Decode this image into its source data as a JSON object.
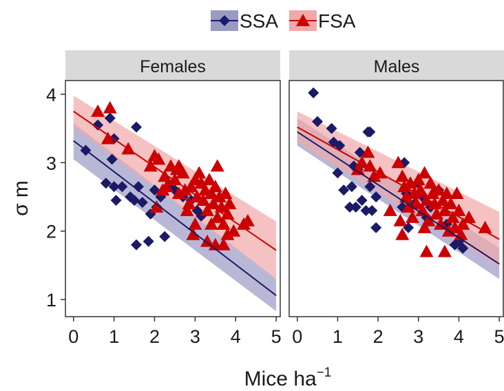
{
  "chart_data": {
    "type": "scatter",
    "xlabel": "Mice ha",
    "xlabel_sup": "−1",
    "ylabel": "σ m",
    "xlim": [
      -0.2,
      5.1
    ],
    "ylim": [
      0.75,
      4.2
    ],
    "xticks": [
      "0",
      "1",
      "2",
      "3",
      "4",
      "5"
    ],
    "yticks": [
      "1",
      "2",
      "3",
      "4"
    ],
    "legend": {
      "position": "top",
      "entries": [
        {
          "name": "SSA",
          "color": "#1a1a66",
          "marker": "diamond",
          "band": "#9a9ac4"
        },
        {
          "name": "FSA",
          "color": "#cc0000",
          "marker": "triangle",
          "band": "#f0a8a8"
        }
      ]
    },
    "panels": [
      {
        "title": "Females",
        "series": [
          {
            "name": "SSA",
            "fit": {
              "x": [
                0,
                5
              ],
              "y": [
                3.32,
                1.06
              ]
            },
            "band": {
              "lower": [
                3.05,
                0.83
              ],
              "upper": [
                3.58,
                1.3
              ]
            },
            "points": [
              [
                0.3,
                3.18
              ],
              [
                0.6,
                3.55
              ],
              [
                0.9,
                3.65
              ],
              [
                1.0,
                3.35
              ],
              [
                0.95,
                3.05
              ],
              [
                0.8,
                2.7
              ],
              [
                1.0,
                2.65
              ],
              [
                1.05,
                2.45
              ],
              [
                1.2,
                2.65
              ],
              [
                1.4,
                2.5
              ],
              [
                1.5,
                2.45
              ],
              [
                1.6,
                2.65
              ],
              [
                1.55,
                3.52
              ],
              [
                1.7,
                2.42
              ],
              [
                1.55,
                1.8
              ],
              [
                1.85,
                1.85
              ],
              [
                1.9,
                2.25
              ],
              [
                2.0,
                2.6
              ],
              [
                2.05,
                2.35
              ],
              [
                2.15,
                2.5
              ],
              [
                2.25,
                1.92
              ],
              [
                2.35,
                2.65
              ],
              [
                2.5,
                2.6
              ],
              [
                2.7,
                2.5
              ],
              [
                2.9,
                2.45
              ],
              [
                3.05,
                2.3
              ],
              [
                3.15,
                2.22
              ]
            ]
          },
          {
            "name": "FSA",
            "fit": {
              "x": [
                0,
                5
              ],
              "y": [
                3.75,
                1.72
              ]
            },
            "band": {
              "lower": [
                3.52,
                1.3
              ],
              "upper": [
                3.98,
                2.14
              ]
            },
            "points": [
              [
                0.6,
                3.75
              ],
              [
                0.9,
                3.8
              ],
              [
                0.85,
                3.35
              ],
              [
                1.35,
                3.2
              ],
              [
                1.9,
                2.95
              ],
              [
                2.0,
                3.1
              ],
              [
                2.1,
                3.05
              ],
              [
                2.25,
                2.8
              ],
              [
                2.3,
                2.65
              ],
              [
                2.4,
                2.95
              ],
              [
                2.5,
                2.75
              ],
              [
                2.55,
                2.9
              ],
              [
                2.6,
                2.55
              ],
              [
                2.7,
                2.85
              ],
              [
                2.75,
                2.6
              ],
              [
                2.85,
                2.4
              ],
              [
                2.9,
                2.65
              ],
              [
                3.0,
                2.75
              ],
              [
                3.05,
                2.5
              ],
              [
                3.1,
                2.85
              ],
              [
                3.15,
                2.7
              ],
              [
                3.2,
                2.45
              ],
              [
                3.25,
                2.6
              ],
              [
                3.3,
                2.3
              ],
              [
                3.35,
                2.75
              ],
              [
                3.4,
                2.55
              ],
              [
                3.45,
                2.4
              ],
              [
                3.5,
                2.65
              ],
              [
                3.55,
                2.2
              ],
              [
                3.6,
                2.5
              ],
              [
                3.65,
                2.35
              ],
              [
                3.7,
                2.1
              ],
              [
                3.75,
                2.55
              ],
              [
                3.8,
                2.25
              ],
              [
                3.85,
                2.4
              ],
              [
                3.3,
                1.85
              ],
              [
                3.5,
                1.8
              ],
              [
                3.7,
                1.8
              ],
              [
                3.8,
                1.95
              ],
              [
                4.2,
                2.1
              ],
              [
                4.3,
                2.15
              ],
              [
                2.8,
                2.3
              ],
              [
                3.0,
                2.1
              ],
              [
                3.4,
                2.1
              ],
              [
                2.95,
                1.95
              ],
              [
                2.6,
                2.95
              ],
              [
                3.55,
                2.95
              ],
              [
                2.2,
                2.6
              ],
              [
                2.05,
                2.35
              ],
              [
                3.95,
                2.0
              ]
            ]
          }
        ]
      },
      {
        "title": "Males",
        "series": [
          {
            "name": "SSA",
            "fit": {
              "x": [
                0,
                5
              ],
              "y": [
                3.45,
                1.52
              ]
            },
            "band": {
              "lower": [
                3.25,
                1.3
              ],
              "upper": [
                3.65,
                1.75
              ]
            },
            "points": [
              [
                0.4,
                4.02
              ],
              [
                0.5,
                3.6
              ],
              [
                0.85,
                3.5
              ],
              [
                0.9,
                3.3
              ],
              [
                1.05,
                3.25
              ],
              [
                1.0,
                2.85
              ],
              [
                1.15,
                2.6
              ],
              [
                1.3,
                2.35
              ],
              [
                1.35,
                2.65
              ],
              [
                1.45,
                2.35
              ],
              [
                1.5,
                2.9
              ],
              [
                1.55,
                3.15
              ],
              [
                1.6,
                2.45
              ],
              [
                1.7,
                2.3
              ],
              [
                1.75,
                3.45
              ],
              [
                1.8,
                3.45
              ],
              [
                1.8,
                2.65
              ],
              [
                1.85,
                2.3
              ],
              [
                1.95,
                2.5
              ],
              [
                1.95,
                2.05
              ],
              [
                2.6,
                2.35
              ],
              [
                2.65,
                3.0
              ],
              [
                2.7,
                2.55
              ],
              [
                2.75,
                2.05
              ],
              [
                3.0,
                2.7
              ],
              [
                3.1,
                2.5
              ],
              [
                3.2,
                2.2
              ],
              [
                3.5,
                2.6
              ],
              [
                3.7,
                2.1
              ],
              [
                3.9,
                1.8
              ],
              [
                4.0,
                1.85
              ],
              [
                4.1,
                1.75
              ],
              [
                1.4,
                2.95
              ],
              [
                2.9,
                2.4
              ],
              [
                3.3,
                2.35
              ]
            ]
          },
          {
            "name": "FSA",
            "fit": {
              "x": [
                0,
                5
              ],
              "y": [
                3.52,
                1.88
              ]
            },
            "band": {
              "lower": [
                3.3,
                1.48
              ],
              "upper": [
                3.75,
                2.28
              ]
            },
            "points": [
              [
                1.5,
                2.9
              ],
              [
                1.75,
                3.15
              ],
              [
                1.8,
                2.95
              ],
              [
                1.9,
                2.8
              ],
              [
                1.6,
                3.0
              ],
              [
                2.05,
                2.85
              ],
              [
                2.5,
                3.0
              ],
              [
                2.6,
                2.8
              ],
              [
                2.65,
                2.65
              ],
              [
                2.7,
                2.5
              ],
              [
                2.75,
                2.35
              ],
              [
                2.8,
                2.7
              ],
              [
                2.85,
                2.2
              ],
              [
                2.9,
                2.55
              ],
              [
                2.95,
                2.4
              ],
              [
                3.0,
                2.75
              ],
              [
                3.05,
                2.6
              ],
              [
                3.1,
                2.3
              ],
              [
                3.15,
                2.85
              ],
              [
                3.2,
                2.45
              ],
              [
                3.25,
                2.15
              ],
              [
                3.3,
                2.7
              ],
              [
                3.35,
                2.55
              ],
              [
                3.4,
                2.4
              ],
              [
                3.45,
                2.25
              ],
              [
                3.5,
                2.6
              ],
              [
                3.55,
                2.1
              ],
              [
                3.6,
                2.45
              ],
              [
                3.65,
                2.3
              ],
              [
                3.7,
                2.55
              ],
              [
                3.75,
                2.0
              ],
              [
                3.8,
                2.4
              ],
              [
                3.85,
                2.2
              ],
              [
                3.9,
                2.05
              ],
              [
                4.0,
                2.3
              ],
              [
                4.1,
                2.1
              ],
              [
                4.25,
                2.2
              ],
              [
                4.65,
                2.05
              ],
              [
                2.6,
                1.95
              ],
              [
                3.2,
                1.7
              ],
              [
                3.65,
                1.7
              ],
              [
                4.05,
                1.95
              ],
              [
                2.3,
                2.3
              ],
              [
                2.55,
                2.15
              ],
              [
                3.95,
                2.55
              ],
              [
                3.15,
                2.05
              ]
            ]
          }
        ]
      }
    ]
  }
}
